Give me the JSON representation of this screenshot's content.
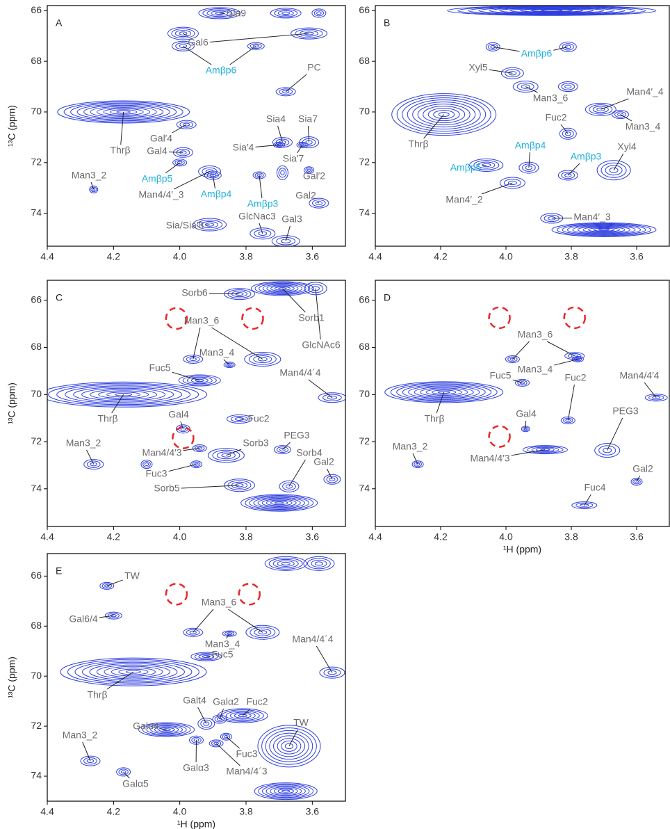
{
  "chart_data": [
    {
      "type": "contour",
      "panel": "A",
      "ylabel": "¹³C (ppm)",
      "xlim": [
        4.4,
        3.5
      ],
      "ylim": [
        65.8,
        75.3
      ],
      "xticks": [
        4.4,
        4.2,
        {
          "value": 4,
          "label": "4.0"
        },
        3.8,
        3.6
      ],
      "yticks": [
        66,
        68,
        70,
        72,
        74
      ],
      "contour_color": "#2f3fe0",
      "label_color": "#6b6b6b",
      "peaks": [
        {
          "label": "Sia9",
          "x": 3.88,
          "y": 66.1
        },
        {
          "x": 3.68,
          "y": 66.1
        },
        {
          "x": 3.58,
          "y": 66.1
        },
        {
          "label": "Gal6",
          "x": 3.99,
          "y": 66.9
        },
        {
          "x": 3.61,
          "y": 66.9
        },
        {
          "label": "Amβp6",
          "x": 3.99,
          "y": 67.4,
          "color": "#1fb1dc"
        },
        {
          "x": 3.77,
          "y": 67.4
        },
        {
          "label": "PC",
          "x": 3.68,
          "y": 69.2
        },
        {
          "label": "Thrβ",
          "x": 4.17,
          "y": 70.0
        },
        {
          "label": "Gal′4",
          "x": 3.98,
          "y": 70.5
        },
        {
          "label": "Gal4",
          "x": 3.99,
          "y": 71.6
        },
        {
          "label": "Sia4",
          "x": 3.69,
          "y": 71.2
        },
        {
          "label": "Sia7",
          "x": 3.61,
          "y": 71.2
        },
        {
          "label": "Sia′4",
          "x": 3.7,
          "y": 71.3
        },
        {
          "label": "Sia′7",
          "x": 3.63,
          "y": 71.3
        },
        {
          "label": "Man3_2",
          "x": 4.26,
          "y": 73.06
        },
        {
          "label": "Amβp5",
          "x": 4.0,
          "y": 72.0,
          "color": "#1fb1dc"
        },
        {
          "label": "Man4/4′_3",
          "x": 3.91,
          "y": 72.35
        },
        {
          "label": "Amβp4",
          "x": 3.9,
          "y": 72.5,
          "color": "#1fb1dc"
        },
        {
          "label": "Amβp3",
          "x": 3.76,
          "y": 72.5,
          "color": "#1fb1dc"
        },
        {
          "label": "Gal′2",
          "x": 3.61,
          "y": 72.3
        },
        {
          "label": "Gal2",
          "x": 3.58,
          "y": 73.6
        },
        {
          "label": "GlcNac3",
          "x": 3.75,
          "y": 74.8
        },
        {
          "label": "Gal3",
          "x": 3.68,
          "y": 75.1
        },
        {
          "label": "Sia/Sia′8",
          "x": 3.91,
          "y": 74.45
        },
        {
          "x": 3.69,
          "y": 72.4
        }
      ]
    },
    {
      "type": "contour",
      "panel": "B",
      "xlim": [
        4.4,
        3.5
      ],
      "ylim": [
        65.8,
        75.3
      ],
      "xticks": [
        4.4,
        4.2,
        {
          "value": 4,
          "label": "4.0"
        },
        3.8,
        3.6
      ],
      "yticks": [
        66,
        68,
        70,
        72,
        74
      ],
      "contour_color": "#2f3fe0",
      "label_color": "#6b6b6b",
      "peaks": [
        {
          "x": 3.86,
          "y": 66.0
        },
        {
          "label": "Amβp6",
          "x": 4.04,
          "y": 67.43,
          "color": "#1fb1dc"
        },
        {
          "x": 3.81,
          "y": 67.43
        },
        {
          "label": "Xyl5",
          "x": 3.98,
          "y": 68.47
        },
        {
          "label": "Man3_6",
          "x": 3.94,
          "y": 69.0
        },
        {
          "x": 3.81,
          "y": 69.0
        },
        {
          "label": "Man4′_4",
          "x": 3.71,
          "y": 69.9
        },
        {
          "label": "Man3_4",
          "x": 3.65,
          "y": 70.1
        },
        {
          "label": "Fuc2",
          "x": 3.81,
          "y": 70.86
        },
        {
          "label": "Thrβ",
          "x": 4.19,
          "y": 70.1
        },
        {
          "label": "Amβp4",
          "x": 3.93,
          "y": 72.2,
          "color": "#1fb1dc"
        },
        {
          "label": "Amβp5",
          "x": 4.06,
          "y": 72.1,
          "color": "#1fb1dc"
        },
        {
          "label": "Amβp3",
          "x": 3.81,
          "y": 72.5,
          "color": "#1fb1dc"
        },
        {
          "label": "Xyl4",
          "x": 3.67,
          "y": 72.3
        },
        {
          "label": "Man4′_2",
          "x": 3.98,
          "y": 72.8
        },
        {
          "label": "Man4′_3",
          "x": 3.86,
          "y": 74.2
        },
        {
          "x": 3.7,
          "y": 74.65
        }
      ]
    },
    {
      "type": "contour",
      "panel": "C",
      "ylabel": "¹³C (ppm)",
      "xlim": [
        4.4,
        3.5
      ],
      "ylim": [
        65.15,
        75.6
      ],
      "xticks": [
        4.4,
        4.2,
        {
          "value": 4,
          "label": "4.0"
        },
        3.8,
        3.6
      ],
      "yticks": [
        66,
        68,
        70,
        72,
        74
      ],
      "contour_color": "#2f3fe0",
      "label_color": "#6b6b6b",
      "circle_color": "#e8282b",
      "peaks": [
        {
          "label": "Sorb6",
          "x": 3.82,
          "y": 65.73
        },
        {
          "label": "Sorb1",
          "x": 3.69,
          "y": 65.5
        },
        {
          "label": "GlcNAc6",
          "x": 3.59,
          "y": 65.5
        },
        {
          "label": "Man3_6",
          "x": 3.96,
          "y": 68.5
        },
        {
          "x": 3.75,
          "y": 68.5
        },
        {
          "label": "Man3_4",
          "x": 3.85,
          "y": 68.74
        },
        {
          "label": "Fuc5",
          "x": 3.94,
          "y": 69.4
        },
        {
          "label": "Man4/4´4",
          "x": 3.54,
          "y": 70.13
        },
        {
          "label": "Thrβ",
          "x": 4.17,
          "y": 70.0
        },
        {
          "label": "Gal4",
          "x": 3.99,
          "y": 71.46
        },
        {
          "label": "Fuc2",
          "x": 3.82,
          "y": 71.04
        },
        {
          "label": "Man3_2",
          "x": 4.26,
          "y": 72.96
        },
        {
          "label": "Man4/4′3",
          "x": 3.94,
          "y": 72.28
        },
        {
          "label": "Sorb3",
          "x": 3.86,
          "y": 72.58
        },
        {
          "label": "PEG3",
          "x": 3.69,
          "y": 72.34
        },
        {
          "label": "Fuc3",
          "x": 3.95,
          "y": 72.96
        },
        {
          "label": "Sorb4",
          "x": 3.67,
          "y": 73.9
        },
        {
          "label": "Gal2",
          "x": 3.54,
          "y": 73.6
        },
        {
          "label": "Sorb5",
          "x": 3.82,
          "y": 73.85
        },
        {
          "x": 3.7,
          "y": 74.6
        },
        {
          "x": 4.1,
          "y": 72.96
        }
      ],
      "dashed_circles": [
        {
          "x": 4.01,
          "y": 66.77
        },
        {
          "x": 3.78,
          "y": 66.77
        },
        {
          "x": 3.99,
          "y": 71.84
        }
      ]
    },
    {
      "type": "contour",
      "panel": "D",
      "xlabel": "¹H (ppm)",
      "xlim": [
        4.4,
        3.5
      ],
      "ylim": [
        65.15,
        75.6
      ],
      "xticks": [
        4.4,
        4.2,
        {
          "value": 4,
          "label": "4.0"
        },
        3.8,
        3.6
      ],
      "yticks": [
        66,
        68,
        70,
        72,
        74
      ],
      "contour_color": "#2f3fe0",
      "label_color": "#6b6b6b",
      "circle_color": "#e8282b",
      "peaks": [
        {
          "label": "Man3_6",
          "x": 3.98,
          "y": 68.5
        },
        {
          "x": 3.79,
          "y": 68.36
        },
        {
          "label": "Man3_4",
          "x": 3.78,
          "y": 68.5
        },
        {
          "label": "Fuc5",
          "x": 3.95,
          "y": 69.5
        },
        {
          "label": "Man4/4′4",
          "x": 3.54,
          "y": 70.13
        },
        {
          "label": "Thrβ",
          "x": 4.19,
          "y": 69.9
        },
        {
          "label": "Fuc2",
          "x": 3.81,
          "y": 71.1
        },
        {
          "label": "Gal4",
          "x": 3.94,
          "y": 71.46
        },
        {
          "label": "PEG3",
          "x": 3.69,
          "y": 72.37
        },
        {
          "label": "Man3_2",
          "x": 4.27,
          "y": 72.96
        },
        {
          "label": "Man4/4′3",
          "x": 3.88,
          "y": 72.34
        },
        {
          "label": "Gal2",
          "x": 3.6,
          "y": 73.7
        },
        {
          "label": "Fuc4",
          "x": 3.76,
          "y": 74.7
        }
      ],
      "dashed_circles": [
        {
          "x": 4.02,
          "y": 66.74
        },
        {
          "x": 3.79,
          "y": 66.74
        },
        {
          "x": 4.02,
          "y": 71.78
        }
      ]
    },
    {
      "type": "contour",
      "panel": "E",
      "ylabel": "¹³C (ppm)",
      "xlabel": "¹H (ppm)",
      "xlim": [
        4.4,
        3.5
      ],
      "ylim": [
        65.1,
        75.0
      ],
      "xticks": [
        4.4,
        4.2,
        {
          "value": 4,
          "label": "4.0"
        },
        3.8,
        3.6
      ],
      "yticks": [
        66,
        68,
        70,
        72,
        74
      ],
      "contour_color": "#2f3fe0",
      "label_color": "#6b6b6b",
      "circle_color": "#e8282b",
      "peaks": [
        {
          "label": "TW",
          "x": 4.22,
          "y": 66.39
        },
        {
          "label": "Gal6/4",
          "x": 4.2,
          "y": 67.58
        },
        {
          "label": "Man3_6",
          "x": 3.96,
          "y": 68.25
        },
        {
          "x": 3.75,
          "y": 68.25
        },
        {
          "label": "Man3_4",
          "x": 3.85,
          "y": 68.3
        },
        {
          "label": "Man4/4´4",
          "x": 3.54,
          "y": 69.86
        },
        {
          "label": "Fuc5",
          "x": 3.92,
          "y": 69.22
        },
        {
          "label": "Thrβ",
          "x": 4.14,
          "y": 69.83
        },
        {
          "label": "Galt4",
          "x": 3.92,
          "y": 71.9
        },
        {
          "label": "Galα2",
          "x": 3.88,
          "y": 71.72
        },
        {
          "label": "Fuc2",
          "x": 3.81,
          "y": 71.58
        },
        {
          "label": "TW",
          "x": 3.67,
          "y": 72.8
        },
        {
          "label": "Man3_2",
          "x": 4.27,
          "y": 73.39
        },
        {
          "label": "Galα4",
          "x": 4.04,
          "y": 72.14
        },
        {
          "label": "Fuc3",
          "x": 3.86,
          "y": 72.42
        },
        {
          "label": "Galα3",
          "x": 3.95,
          "y": 72.56
        },
        {
          "label": "Man4/4´3",
          "x": 3.89,
          "y": 72.69
        },
        {
          "label": "Galα5",
          "x": 4.17,
          "y": 73.83
        },
        {
          "x": 3.68,
          "y": 65.5
        },
        {
          "x": 3.58,
          "y": 65.5
        },
        {
          "x": 3.68,
          "y": 74.6
        }
      ],
      "dashed_circles": [
        {
          "x": 4.01,
          "y": 66.72
        },
        {
          "x": 3.79,
          "y": 66.72
        }
      ]
    }
  ]
}
